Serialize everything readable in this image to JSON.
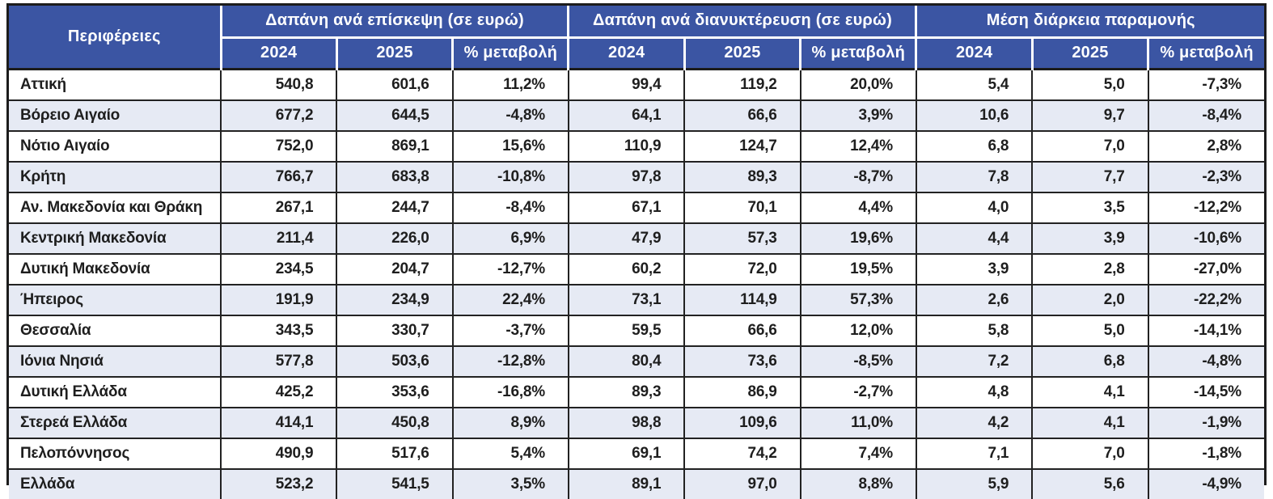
{
  "colors": {
    "header_bg": "#3b55a3",
    "header_text": "#ffffff",
    "row_bg": "#ffffff",
    "row_alt_bg": "#e6eaf4",
    "border_dark": "#1c1c1c",
    "body_text": "#1e1e1e"
  },
  "chart_data": {
    "type": "table",
    "region_header": "Περιφέρειες",
    "groups": [
      {
        "label": "Δαπάνη ανά επίσκεψη (σε ευρώ)",
        "subheaders": [
          "2024",
          "2025",
          "% μεταβολή"
        ]
      },
      {
        "label": "Δαπάνη ανά διανυκτέρευση (σε ευρώ)",
        "subheaders": [
          "2024",
          "2025",
          "% μεταβολή"
        ]
      },
      {
        "label": "Μέση διάρκεια παραμονής",
        "subheaders": [
          "2024",
          "2025",
          "% μεταβολή"
        ]
      }
    ],
    "rows": [
      {
        "region": "Αττική",
        "values": [
          "540,8",
          "601,6",
          "11,2%",
          "99,4",
          "119,2",
          "20,0%",
          "5,4",
          "5,0",
          "-7,3%"
        ]
      },
      {
        "region": "Βόρειο Αιγαίο",
        "values": [
          "677,2",
          "644,5",
          "-4,8%",
          "64,1",
          "66,6",
          "3,9%",
          "10,6",
          "9,7",
          "-8,4%"
        ]
      },
      {
        "region": "Νότιο Αιγαίο",
        "values": [
          "752,0",
          "869,1",
          "15,6%",
          "110,9",
          "124,7",
          "12,4%",
          "6,8",
          "7,0",
          "2,8%"
        ]
      },
      {
        "region": "Κρήτη",
        "values": [
          "766,7",
          "683,8",
          "-10,8%",
          "97,8",
          "89,3",
          "-8,7%",
          "7,8",
          "7,7",
          "-2,3%"
        ]
      },
      {
        "region": "Αν. Μακεδονία και Θράκη",
        "values": [
          "267,1",
          "244,7",
          "-8,4%",
          "67,1",
          "70,1",
          "4,4%",
          "4,0",
          "3,5",
          "-12,2%"
        ]
      },
      {
        "region": "Κεντρική Μακεδονία",
        "values": [
          "211,4",
          "226,0",
          "6,9%",
          "47,9",
          "57,3",
          "19,6%",
          "4,4",
          "3,9",
          "-10,6%"
        ]
      },
      {
        "region": "Δυτική Μακεδονία",
        "values": [
          "234,5",
          "204,7",
          "-12,7%",
          "60,2",
          "72,0",
          "19,5%",
          "3,9",
          "2,8",
          "-27,0%"
        ]
      },
      {
        "region": "Ήπειρος",
        "values": [
          "191,9",
          "234,9",
          "22,4%",
          "73,1",
          "114,9",
          "57,3%",
          "2,6",
          "2,0",
          "-22,2%"
        ]
      },
      {
        "region": "Θεσσαλία",
        "values": [
          "343,5",
          "330,7",
          "-3,7%",
          "59,5",
          "66,6",
          "12,0%",
          "5,8",
          "5,0",
          "-14,1%"
        ]
      },
      {
        "region": "Ιόνια Νησιά",
        "values": [
          "577,8",
          "503,6",
          "-12,8%",
          "80,4",
          "73,6",
          "-8,5%",
          "7,2",
          "6,8",
          "-4,8%"
        ]
      },
      {
        "region": "Δυτική Ελλάδα",
        "values": [
          "425,2",
          "353,6",
          "-16,8%",
          "89,3",
          "86,9",
          "-2,7%",
          "4,8",
          "4,1",
          "-14,5%"
        ]
      },
      {
        "region": "Στερεά Ελλάδα",
        "values": [
          "414,1",
          "450,8",
          "8,9%",
          "98,8",
          "109,6",
          "11,0%",
          "4,2",
          "4,1",
          "-1,9%"
        ]
      },
      {
        "region": "Πελοπόννησος",
        "values": [
          "490,9",
          "517,6",
          "5,4%",
          "69,1",
          "74,2",
          "7,4%",
          "7,1",
          "7,0",
          "-1,8%"
        ]
      },
      {
        "region": "Ελλάδα",
        "values": [
          "523,2",
          "541,5",
          "3,5%",
          "89,1",
          "97,0",
          "8,8%",
          "5,9",
          "5,6",
          "-4,9%"
        ]
      }
    ]
  }
}
